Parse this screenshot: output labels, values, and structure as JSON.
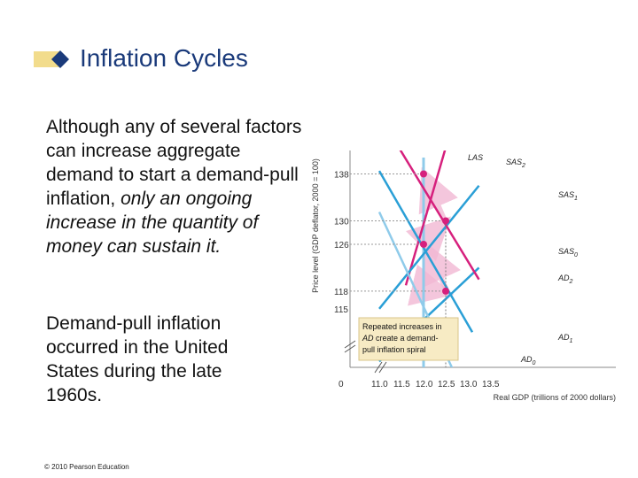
{
  "slide": {
    "title": "Inflation Cycles",
    "para1_normal": "Although any of several factors can increase aggregate demand to start a demand-pull inflation, ",
    "para1_italic": "only an ongoing increase in the quantity of money can sustain it.",
    "para2": "Demand-pull inflation occurred in the United States during the late 1960s.",
    "copyright": "© 2010 Pearson Education"
  },
  "colors": {
    "title": "#1a3a7a",
    "accent_bar": "#f2dc8c",
    "accent_diamond": "#1a3a7a",
    "magenta": "#d6207d",
    "blue": "#2a9fd6",
    "light_blue": "#8fcbea",
    "dot": "#d6207d"
  },
  "chart_data": {
    "type": "line",
    "xlabel": "Real GDP (trillions of 2000 dollars)",
    "ylabel": "Price level (GDP deflator, 2000 = 100)",
    "x_ticks": [
      "0",
      "11.0",
      "11.5",
      "12.0",
      "12.5",
      "13.0",
      "13.5"
    ],
    "y_ticks": [
      "138",
      "130",
      "126",
      "118",
      "115"
    ],
    "xlim": [
      11.0,
      13.5
    ],
    "ylim": [
      105,
      142
    ],
    "series": [
      {
        "name": "LAS",
        "role": "vertical",
        "x": 12.0
      },
      {
        "name": "SAS2",
        "role": "sas",
        "points": [
          [
            11.6,
            119
          ],
          [
            12.5,
            142.5
          ]
        ]
      },
      {
        "name": "SAS1",
        "role": "sas",
        "points": [
          [
            11.0,
            115
          ],
          [
            13.25,
            136
          ]
        ]
      },
      {
        "name": "SAS0",
        "role": "sas",
        "points": [
          [
            11.0,
            106
          ],
          [
            13.25,
            122
          ]
        ]
      },
      {
        "name": "AD2",
        "role": "ad",
        "points": [
          [
            11.0,
            148
          ],
          [
            13.25,
            120
          ]
        ]
      },
      {
        "name": "AD1",
        "role": "ad",
        "points": [
          [
            11.0,
            138.5
          ],
          [
            13.1,
            111
          ]
        ]
      },
      {
        "name": "AD0",
        "role": "ad",
        "points": [
          [
            11.0,
            131.5
          ],
          [
            12.7,
            104
          ]
        ]
      }
    ],
    "labels": {
      "LAS": "LAS",
      "SAS2": {
        "base": "SAS",
        "sub": "2"
      },
      "SAS1": {
        "base": "SAS",
        "sub": "1"
      },
      "SAS0": {
        "base": "SAS",
        "sub": "0"
      },
      "AD2": {
        "base": "AD",
        "sub": "2"
      },
      "AD1": {
        "base": "AD",
        "sub": "1"
      },
      "AD0": {
        "base": "AD",
        "sub": "0"
      }
    },
    "equilibria": [
      {
        "x": 12.0,
        "y": 138
      },
      {
        "x": 12.5,
        "y": 130
      },
      {
        "x": 12.0,
        "y": 126
      },
      {
        "x": 12.5,
        "y": 118
      }
    ],
    "annotation": {
      "line1_pre": "Repeated increases in",
      "line2_italic": "AD",
      "line2_rest": " create a demand-",
      "line3": "pull inflation spiral"
    }
  }
}
